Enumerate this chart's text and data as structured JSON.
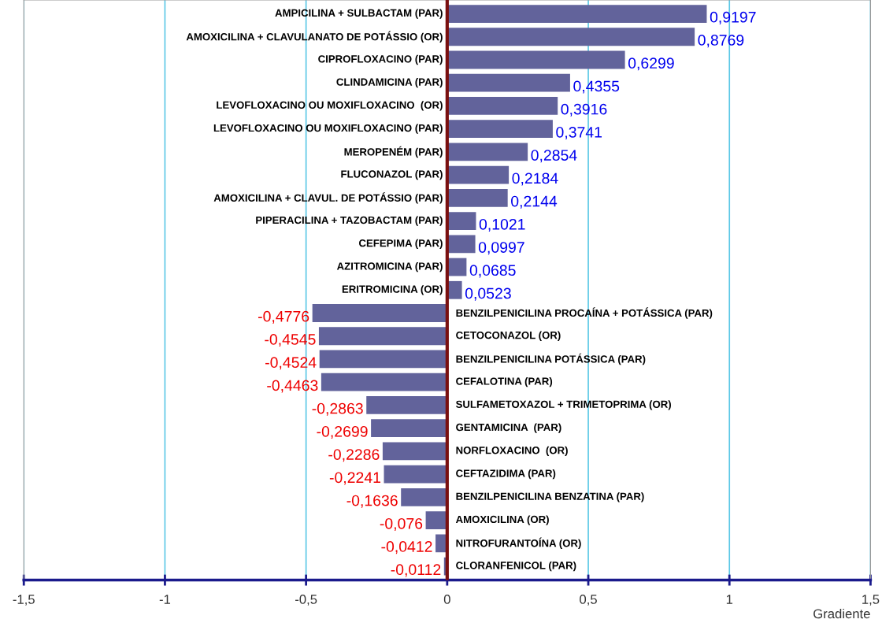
{
  "chart_data": {
    "type": "bar",
    "orientation": "horizontal",
    "xlabel": "Gradiente",
    "categories": [
      "AMPICILINA + SULBACTAM (PAR)",
      "AMOXICILINA + CLAVULANATO DE POTÁSSIO (OR)",
      "CIPROFLOXACINO (PAR)",
      "CLINDAMICINA (PAR)",
      "LEVOFLOXACINO OU MOXIFLOXACINO  (OR)",
      "LEVOFLOXACINO OU MOXIFLOXACINO (PAR)",
      "MEROPENÉM (PAR)",
      "FLUCONAZOL (PAR)",
      "AMOXICILINA + CLAVUL. DE POTÁSSIO (PAR)",
      "PIPERACILINA + TAZOBACTAM (PAR)",
      "CEFEPIMA (PAR)",
      "AZITROMICINA (PAR)",
      "ERITROMICINA (OR)",
      "BENZILPENICILINA PROCAÍNA + POTÁSSICA (PAR)",
      "CETOCONAZOL (OR)",
      "BENZILPENICILINA POTÁSSICA (PAR)",
      "CEFALOTINA (PAR)",
      "SULFAMETOXAZOL + TRIMETOPRIMA (OR)",
      "GENTAMICINA  (PAR)",
      "NORFLOXACINO  (OR)",
      "CEFTAZIDIMA (PAR)",
      "BENZILPENICILINA BENZATINA (PAR)",
      "AMOXICILINA (OR)",
      "NITROFURANTOÍNA (OR)",
      "CLORANFENICOL (PAR)"
    ],
    "values": [
      0.9197,
      0.8769,
      0.6299,
      0.4355,
      0.3916,
      0.3741,
      0.2854,
      0.2184,
      0.2144,
      0.1021,
      0.0997,
      0.0685,
      0.0523,
      -0.4776,
      -0.4545,
      -0.4524,
      -0.4463,
      -0.2863,
      -0.2699,
      -0.2286,
      -0.2241,
      -0.1636,
      -0.076,
      -0.0412,
      -0.0112
    ],
    "value_labels": [
      "0,9197",
      "0,8769",
      "0,6299",
      "0,4355",
      "0,3916",
      "0,3741",
      "0,2854",
      "0,2184",
      "0,2144",
      "0,1021",
      "0,0997",
      "0,0685",
      "0,0523",
      "-0,4776",
      "-0,4545",
      "-0,4524",
      "-0,4463",
      "-0,2863",
      "-0,2699",
      "-0,2286",
      "-0,2241",
      "-0,1636",
      "-0,076",
      "-0,0412",
      "-0,0112"
    ],
    "color": "#62639b",
    "xlim": [
      -1.5,
      1.5
    ],
    "xticks": [
      {
        "value": -1.5,
        "label": "-1,5"
      },
      {
        "value": -1,
        "label": "-1"
      },
      {
        "value": -0.5,
        "label": "-0,5"
      },
      0,
      {
        "value": 0.5,
        "label": "0,5"
      },
      1,
      {
        "value": 1.5,
        "label": "1,5"
      }
    ],
    "grid": "x"
  }
}
